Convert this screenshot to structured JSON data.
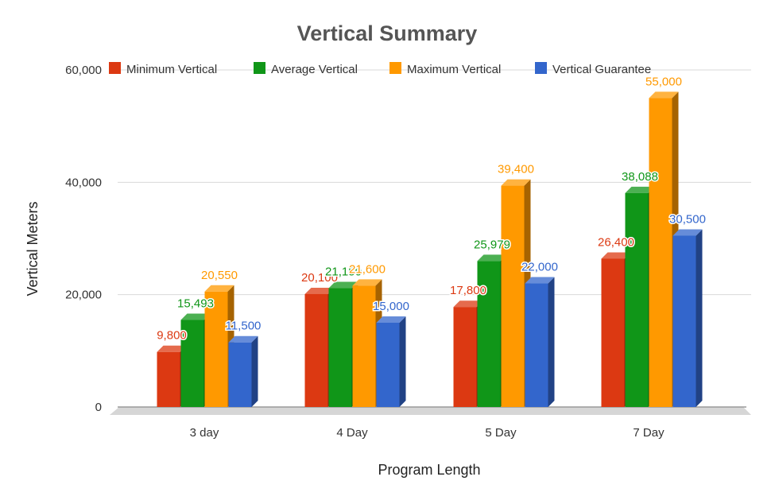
{
  "chart_data": {
    "type": "bar",
    "title": "Vertical Summary",
    "xlabel": "Program Length",
    "ylabel": "Vertical Meters",
    "categories": [
      "3 day",
      "4 Day",
      "5 Day",
      "7 Day"
    ],
    "ylim": [
      0,
      60000
    ],
    "yticks": [
      0,
      20000,
      40000,
      60000
    ],
    "ytick_labels": [
      "0",
      "20,000",
      "40,000",
      "60,000"
    ],
    "grid": true,
    "legend_position": "top",
    "series": [
      {
        "name": "Minimum Vertical",
        "color": "#dc3912",
        "values": [
          9800,
          20100,
          17800,
          26400
        ],
        "labels": [
          "9,800",
          "20,100",
          "17,800",
          "26,400"
        ]
      },
      {
        "name": "Average Vertical",
        "color": "#109618",
        "values": [
          15493,
          21150,
          25979,
          38088
        ],
        "labels": [
          "15,493",
          "21,150",
          "25,979",
          "38,088"
        ]
      },
      {
        "name": "Maximum Vertical",
        "color": "#ff9900",
        "values": [
          20550,
          21600,
          39400,
          55000
        ],
        "labels": [
          "20,550",
          "21,600",
          "39,400",
          "55,000"
        ]
      },
      {
        "name": "Vertical Guarantee",
        "color": "#3366cc",
        "values": [
          11500,
          15000,
          22000,
          30500
        ],
        "labels": [
          "11,500",
          "15,000",
          "22,000",
          "30,500"
        ]
      }
    ]
  }
}
